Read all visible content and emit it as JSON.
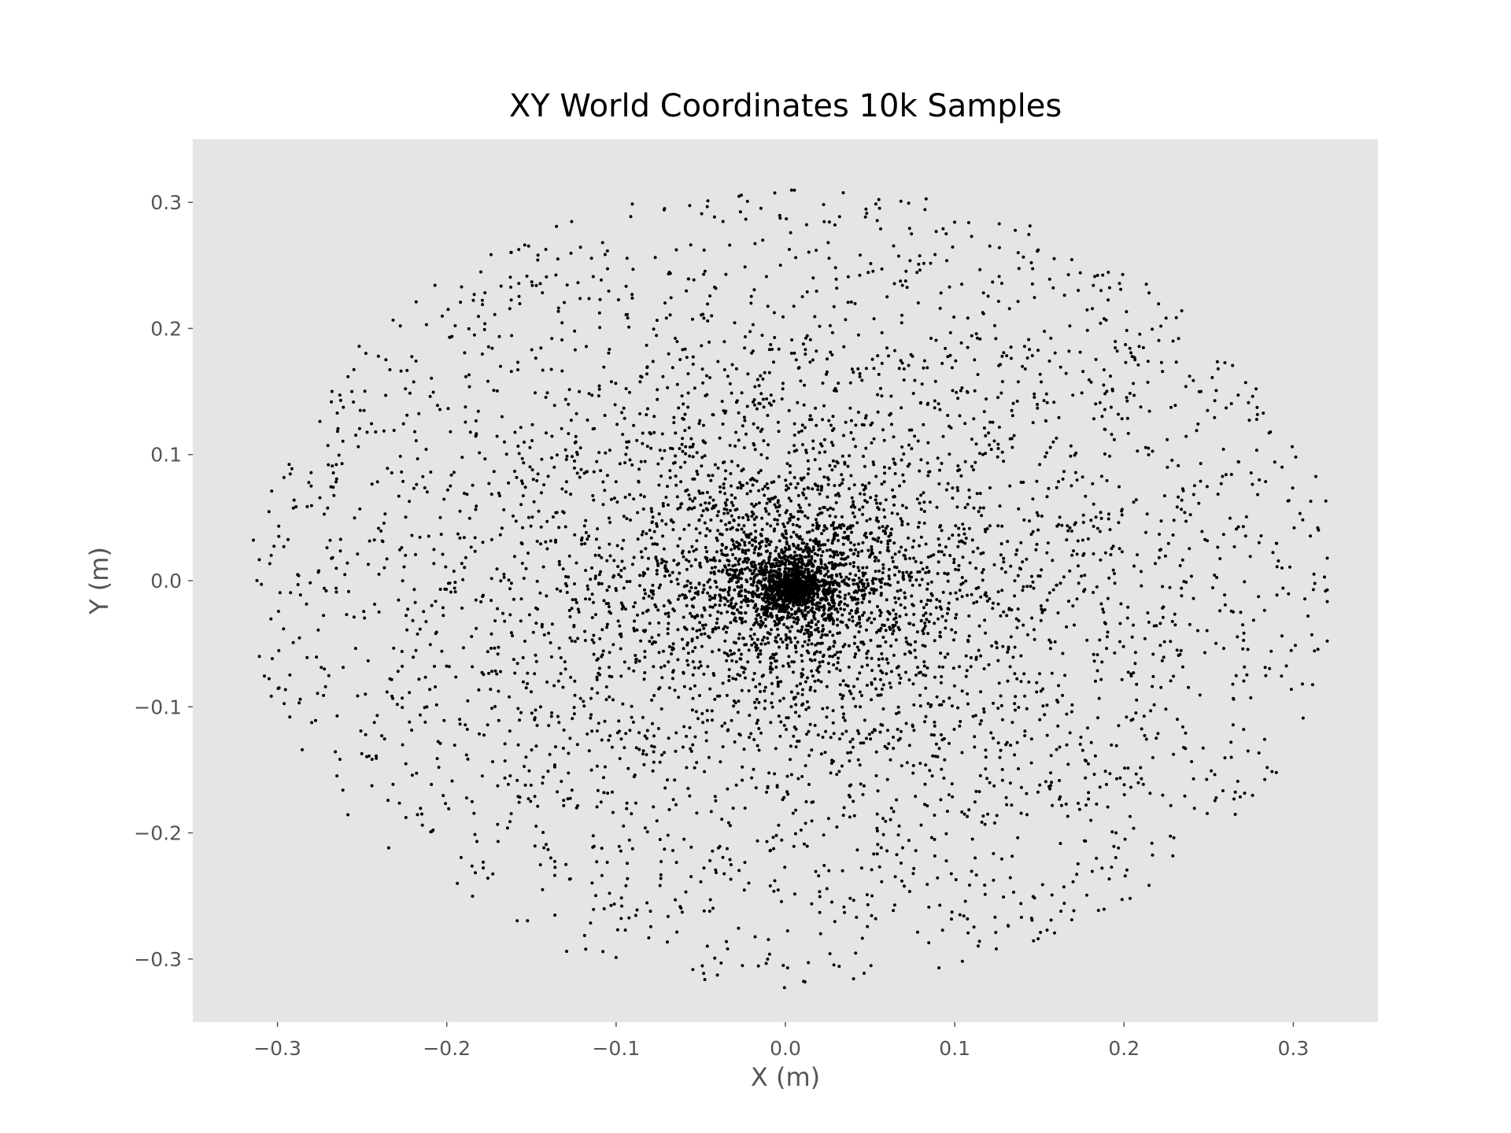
{
  "chart_data": {
    "type": "scatter",
    "title": "XY World Coordinates 10k Samples",
    "xlabel": "X (m)",
    "ylabel": "Y (m)",
    "xlim": [
      -0.35,
      0.35
    ],
    "ylim": [
      -0.35,
      0.35
    ],
    "xticks": [
      -0.3,
      -0.2,
      -0.1,
      0.0,
      0.1,
      0.2,
      0.3
    ],
    "xtick_labels": [
      "−0.3",
      "−0.2",
      "−0.1",
      "0.0",
      "0.1",
      "0.2",
      "0.3"
    ],
    "yticks": [
      -0.3,
      -0.2,
      -0.1,
      0.0,
      0.1,
      0.2,
      0.3
    ],
    "ytick_labels": [
      "−0.3",
      "−0.2",
      "−0.1",
      "0.0",
      "0.1",
      "0.2",
      "0.3"
    ],
    "grid": false,
    "legend": false,
    "sample_count": 10000,
    "point_color": "#000000",
    "background_color": "#e5e5e5",
    "distribution": {
      "center": [
        0.005,
        -0.005
      ],
      "extent_x": [
        -0.325,
        0.32
      ],
      "extent_y": [
        -0.325,
        0.318
      ]
    }
  }
}
